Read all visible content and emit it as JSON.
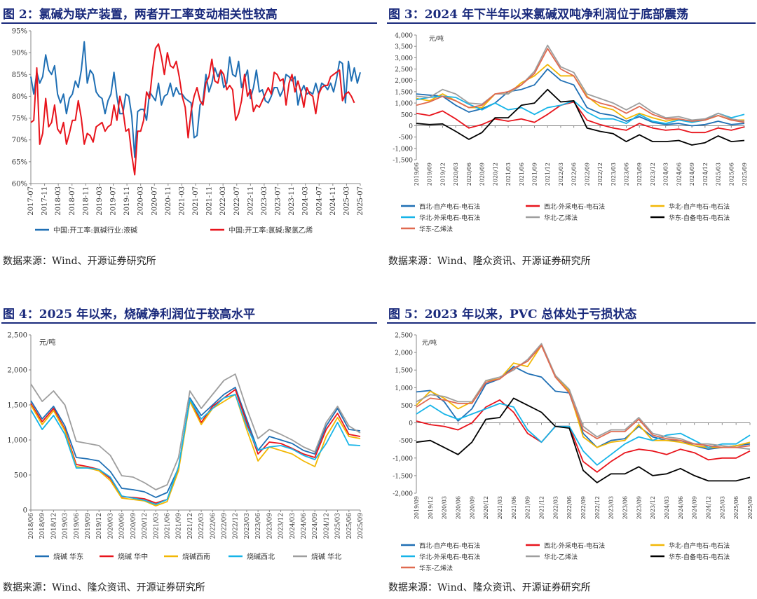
{
  "panels": {
    "fig2": {
      "title": "图 2：氯碱为联产装置，两者开工率变动相关性较高",
      "source": "数据来源：Wind、开源证券研究所"
    },
    "fig3": {
      "title": "图 3：2024 年下半年以来氯碱双吨净利润位于底部震荡",
      "source": "数据来源：Wind、隆众资讯、开源证券研究所"
    },
    "fig4": {
      "title": "图 4：2025 年以来，烧碱净利润位于较高水平",
      "source": "数据来源：Wind、隆众资讯、开源证券研究所"
    },
    "fig5": {
      "title": "图 5：2023 年以来，PVC 总体处于亏损状态",
      "source": "数据来源：Wind、隆众资讯、开源证券研究所"
    }
  },
  "chart_data": [
    {
      "id": "fig2",
      "type": "line",
      "title": "图 2：氯碱为联产装置，两者开工率变动相关性较高",
      "ylim": [
        60,
        95
      ],
      "y_ticks": [
        60,
        65,
        70,
        75,
        80,
        85,
        90,
        95
      ],
      "y_tick_labels": [
        "60%",
        "65%",
        "70%",
        "75%",
        "80%",
        "85%",
        "90%",
        "95%"
      ],
      "x_ticks": [
        "2017-07",
        "2017-11",
        "2018-03",
        "2018-07",
        "2018-11",
        "2019-03",
        "2019-07",
        "2019-11",
        "2020-03",
        "2020-07",
        "2020-11",
        "2021-03",
        "2021-07",
        "2021-11",
        "2022-03",
        "2022-07",
        "2022-11",
        "2023-03",
        "2023-07",
        "2023-11",
        "2024-03",
        "2024-07",
        "2024-11",
        "2025-03",
        "2025-07"
      ],
      "legend_position": "bottom",
      "series": [
        {
          "name": "中国:开工率:氯碱行业:液碱",
          "color": "#1f6fb4",
          "values": [
            84.5,
            80.5,
            85.5,
            83,
            84.5,
            89.5,
            86,
            85,
            87,
            80.5,
            78.5,
            80.5,
            76,
            79.5,
            80.5,
            83.5,
            82,
            86,
            92.5,
            83,
            86,
            85,
            81,
            80,
            79.5,
            76,
            79,
            80.5,
            85.5,
            80,
            76,
            76,
            80.5,
            80,
            75.5,
            66,
            76.5,
            77,
            77,
            74.5,
            81,
            80,
            79,
            83,
            78,
            80,
            80.5,
            83,
            80,
            82,
            80.5,
            80.5,
            79.5,
            79,
            78.5,
            70.5,
            71,
            78,
            79,
            85,
            81,
            83,
            86.5,
            84.5,
            86,
            82,
            83,
            89,
            85,
            84.5,
            88,
            82,
            84,
            86,
            79.5,
            82,
            86,
            81,
            81.5,
            79,
            78.5,
            80,
            82,
            82,
            80,
            81.5,
            85,
            84.5,
            83.5,
            84.5,
            78,
            81,
            82.5,
            80.5,
            81,
            80.5,
            83,
            80.5,
            83,
            82.5,
            81.5,
            83,
            81,
            84,
            88,
            87.5,
            78.5,
            88,
            83.5,
            86.5,
            83,
            85.5
          ]
        },
        {
          "name": "中国:开工率:氯碱:聚氯乙烯",
          "color": "#e8141c",
          "values": [
            74,
            74.5,
            86.5,
            69,
            71.5,
            79.5,
            73,
            74,
            78,
            72.5,
            71.5,
            74,
            69,
            71.5,
            74.5,
            74.5,
            79,
            75,
            69,
            71.5,
            71,
            69.5,
            73,
            73.5,
            74,
            72,
            73,
            73.5,
            78,
            74.5,
            80,
            77,
            72,
            72.5,
            66.5,
            62,
            72,
            72,
            74.5,
            81,
            79.5,
            86,
            91,
            92,
            89,
            85,
            90,
            87,
            86.5,
            88,
            84.5,
            80,
            77.5,
            70.5,
            76.5,
            80,
            82,
            79,
            78,
            83,
            84.5,
            88.5,
            83.5,
            83,
            86,
            85,
            81.5,
            82.5,
            81.5,
            74.5,
            76,
            79,
            85,
            80,
            81.5,
            76.5,
            78,
            77.5,
            79,
            80.5,
            82,
            80.5,
            85.5,
            85,
            83.5,
            84,
            78,
            83,
            85,
            81,
            83.5,
            81,
            77.5,
            82,
            80.5,
            80,
            76,
            80.5,
            82,
            82.5,
            82.5,
            84.5,
            85,
            85.5,
            86,
            79,
            80.5,
            81,
            80,
            78.5
          ]
        }
      ]
    },
    {
      "id": "fig3",
      "type": "line",
      "title": "图 3：2024 年下半年以来氯碱双吨净利润位于底部震荡",
      "unit": "元/吨",
      "ylim": [
        -1500,
        4000
      ],
      "y_ticks": [
        -1500,
        -1000,
        -500,
        0,
        500,
        1000,
        1500,
        2000,
        2500,
        3000,
        3500,
        4000
      ],
      "y_tick_labels": [
        "-1,500",
        "-1,000",
        "-500",
        "0",
        "500",
        "1,000",
        "1,500",
        "2,000",
        "2,500",
        "3,000",
        "3,500",
        "4,000"
      ],
      "x": [
        "2019/06",
        "2019/09",
        "2019/12",
        "2020/03",
        "2020/06",
        "2020/09",
        "2020/12",
        "2021/03",
        "2021/06",
        "2021/09",
        "2021/12",
        "2022/03",
        "2022/06",
        "2022/09",
        "2022/12",
        "2023/03",
        "2023/06",
        "2023/09",
        "2023/12",
        "2024/03",
        "2024/06",
        "2024/09",
        "2024/12",
        "2025/03",
        "2025/06",
        "2025/09"
      ],
      "legend_position": "bottom",
      "series": [
        {
          "name": "西北-自产电石-电石法",
          "color": "#1f6fb4",
          "values": [
            1400,
            1350,
            1300,
            900,
            600,
            750,
            1000,
            1500,
            1600,
            1800,
            2500,
            2000,
            1800,
            800,
            550,
            450,
            200,
            400,
            150,
            50,
            100,
            0,
            50,
            200,
            50,
            100
          ]
        },
        {
          "name": "西北-外采电石-电石法",
          "color": "#e8141c",
          "values": [
            550,
            450,
            650,
            300,
            -100,
            50,
            300,
            200,
            300,
            150,
            500,
            900,
            1050,
            250,
            50,
            -100,
            -200,
            100,
            -100,
            -200,
            -150,
            -300,
            -300,
            -100,
            -200,
            -50
          ]
        },
        {
          "name": "华北-自产电石-电石法",
          "color": "#f2b705",
          "values": [
            1200,
            1100,
            1400,
            1100,
            800,
            800,
            1400,
            1400,
            1900,
            2200,
            2700,
            2200,
            2200,
            1300,
            850,
            700,
            300,
            550,
            350,
            200,
            300,
            150,
            250,
            450,
            250,
            250
          ]
        },
        {
          "name": "华北-外采电石-电石法",
          "color": "#16b4e8",
          "values": [
            1150,
            1250,
            1300,
            1250,
            950,
            700,
            1000,
            700,
            800,
            500,
            800,
            900,
            1100,
            600,
            300,
            300,
            100,
            500,
            200,
            100,
            250,
            150,
            250,
            550,
            350,
            500
          ]
        },
        {
          "name": "华北-乙烯法",
          "color": "#9e9e9e",
          "values": [
            1300,
            1250,
            1600,
            1400,
            1000,
            950,
            1400,
            1400,
            1800,
            2400,
            3550,
            2600,
            2350,
            1400,
            1200,
            1000,
            700,
            1000,
            600,
            350,
            400,
            250,
            300,
            550,
            300,
            200
          ]
        },
        {
          "name": "华东-自备电石-电石法",
          "color": "#000000",
          "values": [
            100,
            50,
            80,
            -250,
            -600,
            -300,
            350,
            350,
            900,
            1000,
            1600,
            1050,
            1100,
            -100,
            -250,
            -350,
            -700,
            -400,
            -700,
            -700,
            -650,
            -850,
            -750,
            -450,
            -700,
            -650
          ]
        },
        {
          "name": "华东-乙烯法",
          "color": "#e06a50",
          "values": [
            900,
            1050,
            1300,
            1100,
            800,
            900,
            1400,
            1500,
            1800,
            2300,
            3400,
            2500,
            2200,
            1250,
            1000,
            850,
            550,
            850,
            500,
            300,
            300,
            200,
            250,
            450,
            250,
            150
          ]
        }
      ]
    },
    {
      "id": "fig4",
      "type": "line",
      "title": "图 4：2025 年以来，烧碱净利润位于较高水平",
      "unit": "元/吨",
      "ylim": [
        0,
        2500
      ],
      "y_ticks": [
        0,
        500,
        1000,
        1500,
        2000,
        2500
      ],
      "y_tick_labels": [
        "0",
        "500",
        "1,000",
        "1,500",
        "2,000",
        "2,500"
      ],
      "x": [
        "2018/06",
        "2018/09",
        "2018/12",
        "2019/03",
        "2019/06",
        "2019/09",
        "2019/12",
        "2020/03",
        "2020/06",
        "2020/09",
        "2020/12",
        "2021/03",
        "2021/06",
        "2021/09",
        "2021/12",
        "2022/03",
        "2022/06",
        "2022/09",
        "2022/12",
        "2023/03",
        "2023/06",
        "2023/09",
        "2023/12",
        "2024/03",
        "2024/06",
        "2024/09",
        "2024/12",
        "2025/03",
        "2025/06",
        "2025/09"
      ],
      "legend_position": "bottom",
      "series": [
        {
          "name": "烧碱 华东",
          "color": "#1f6fb4",
          "values": [
            1560,
            1300,
            1480,
            1200,
            750,
            730,
            700,
            550,
            310,
            290,
            260,
            180,
            250,
            600,
            1600,
            1350,
            1500,
            1650,
            1750,
            1300,
            850,
            1050,
            1000,
            950,
            850,
            800,
            1200,
            1450,
            1150,
            1130
          ]
        },
        {
          "name": "烧碱 华中",
          "color": "#e8141c",
          "values": [
            1520,
            1260,
            1450,
            1150,
            650,
            620,
            580,
            450,
            190,
            180,
            160,
            100,
            150,
            580,
            1580,
            1250,
            1480,
            1600,
            1720,
            1250,
            800,
            970,
            950,
            880,
            800,
            750,
            1150,
            1380,
            1080,
            1050
          ]
        },
        {
          "name": "烧碱西南",
          "color": "#f2b705",
          "values": [
            1500,
            1220,
            1420,
            1130,
            620,
            600,
            560,
            420,
            170,
            150,
            130,
            60,
            120,
            560,
            1550,
            1220,
            1450,
            1550,
            1650,
            1150,
            700,
            900,
            850,
            800,
            700,
            620,
            1050,
            1320,
            1050,
            1020
          ]
        },
        {
          "name": "烧碱西北",
          "color": "#16b4e8",
          "values": [
            1430,
            1150,
            1350,
            1080,
            600,
            600,
            580,
            470,
            200,
            170,
            140,
            80,
            150,
            620,
            1580,
            1300,
            1450,
            1600,
            1650,
            1200,
            850,
            900,
            920,
            870,
            780,
            720,
            950,
            1250,
            930,
            920
          ]
        },
        {
          "name": "烧碱 华北",
          "color": "#9e9e9e",
          "values": [
            1800,
            1550,
            1700,
            1500,
            980,
            950,
            920,
            780,
            490,
            470,
            390,
            290,
            360,
            750,
            1700,
            1450,
            1650,
            1850,
            1940,
            1450,
            1020,
            1150,
            1080,
            1000,
            900,
            830,
            1250,
            1480,
            1200,
            1100
          ]
        }
      ]
    },
    {
      "id": "fig5",
      "type": "line",
      "title": "图 5：2023 年以来，PVC 总体处于亏损状态",
      "unit": "元/吨",
      "ylim": [
        -2000,
        2500
      ],
      "y_ticks": [
        -2000,
        -1500,
        -1000,
        -500,
        0,
        500,
        1000,
        1500,
        2000,
        2500
      ],
      "y_tick_labels": [
        "-2,000",
        "-1,500",
        "-1,000",
        "-500",
        "0",
        "500",
        "1,000",
        "1,500",
        "2,000",
        "2,500"
      ],
      "x": [
        "2019/09",
        "2019/12",
        "2020/03",
        "2020/06",
        "2020/09",
        "2020/12",
        "2021/03",
        "2021/06",
        "2021/09",
        "2021/12",
        "2022/03",
        "2022/06",
        "2022/09",
        "2022/12",
        "2023/03",
        "2023/06",
        "2023/09",
        "2023/12",
        "2024/03",
        "2024/06",
        "2024/09",
        "2024/12",
        "2025/03",
        "2025/06",
        "2025/09"
      ],
      "legend_position": "bottom",
      "series": [
        {
          "name": "西北-自产电石-电石法",
          "color": "#1f6fb4",
          "values": [
            880,
            920,
            600,
            50,
            400,
            1100,
            1250,
            1600,
            1400,
            1300,
            900,
            850,
            -300,
            -700,
            -500,
            -450,
            -100,
            -400,
            -500,
            -500,
            -650,
            -750,
            -700,
            -650,
            -600
          ]
        },
        {
          "name": "西北-外采电石-电石法",
          "color": "#e8141c",
          "values": [
            50,
            -50,
            -100,
            -200,
            0,
            450,
            650,
            300,
            -300,
            -550,
            -100,
            -100,
            -1100,
            -1400,
            -1100,
            -850,
            -750,
            -800,
            -900,
            -750,
            -850,
            -1050,
            -1000,
            -1000,
            -800
          ]
        },
        {
          "name": "华北-自产电石-电石法",
          "color": "#f2b705",
          "values": [
            500,
            900,
            700,
            400,
            600,
            1200,
            1250,
            1700,
            1600,
            2200,
            1350,
            900,
            -400,
            -700,
            -550,
            -500,
            -50,
            -500,
            -500,
            -550,
            -650,
            -700,
            -700,
            -650,
            -550
          ]
        },
        {
          "name": "华北-外采电石-电石法",
          "color": "#16b4e8",
          "values": [
            250,
            500,
            250,
            100,
            250,
            400,
            550,
            450,
            -200,
            -550,
            -100,
            -100,
            -800,
            -1200,
            -900,
            -600,
            -400,
            -500,
            -350,
            -300,
            -500,
            -700,
            -600,
            -600,
            -350
          ]
        },
        {
          "name": "华北-乙烯法",
          "color": "#9e9e9e",
          "values": [
            600,
            800,
            750,
            600,
            600,
            1200,
            1300,
            1500,
            1800,
            2250,
            1350,
            950,
            -100,
            -400,
            -200,
            -200,
            150,
            -300,
            -400,
            -450,
            -600,
            -600,
            -650,
            -700,
            -750
          ]
        },
        {
          "name": "华东-自备电石-电石法",
          "color": "#000000",
          "values": [
            -550,
            -500,
            -700,
            -900,
            -550,
            100,
            150,
            700,
            500,
            300,
            -100,
            -150,
            -1350,
            -1700,
            -1450,
            -1450,
            -1250,
            -1500,
            -1450,
            -1300,
            -1500,
            -1650,
            -1650,
            -1650,
            -1550
          ]
        },
        {
          "name": "华东-乙烯法",
          "color": "#e06a50",
          "values": [
            450,
            700,
            650,
            550,
            550,
            1150,
            1250,
            1550,
            1750,
            2200,
            1300,
            850,
            -200,
            -450,
            -250,
            -250,
            100,
            -350,
            -450,
            -500,
            -600,
            -650,
            -700,
            -700,
            -650
          ]
        }
      ]
    }
  ]
}
